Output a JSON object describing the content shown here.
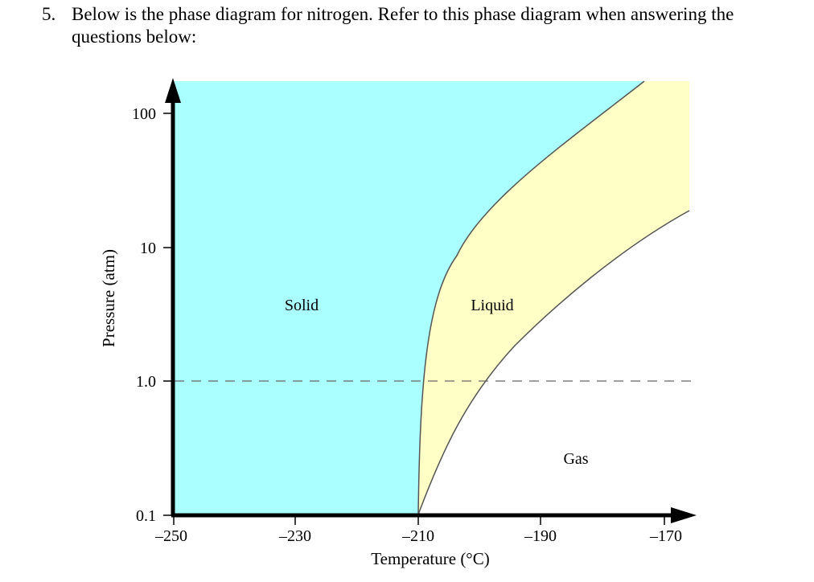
{
  "question": {
    "number": "5.",
    "text": "Below is the phase diagram for nitrogen. Refer to this phase diagram when answering the questions below:"
  },
  "chart_data": {
    "type": "diagram",
    "xlabel": "Temperature (°C)",
    "ylabel": "Pressure (atm)",
    "x_ticks": [
      "–250",
      "–230",
      "–210",
      "–190",
      "–170"
    ],
    "y_ticks": [
      "0.1",
      "1.0",
      "10",
      "100"
    ],
    "x_range": [
      -250,
      -170
    ],
    "y_scale": "log",
    "y_range": [
      0.1,
      100
    ],
    "regions": {
      "solid": {
        "label": "Solid",
        "color": "#aaffff"
      },
      "liquid": {
        "label": "Liquid",
        "color": "#ffffc6"
      },
      "gas": {
        "label": "Gas",
        "color": "#ffffff"
      }
    },
    "reference_line_pressure": 1.0
  }
}
